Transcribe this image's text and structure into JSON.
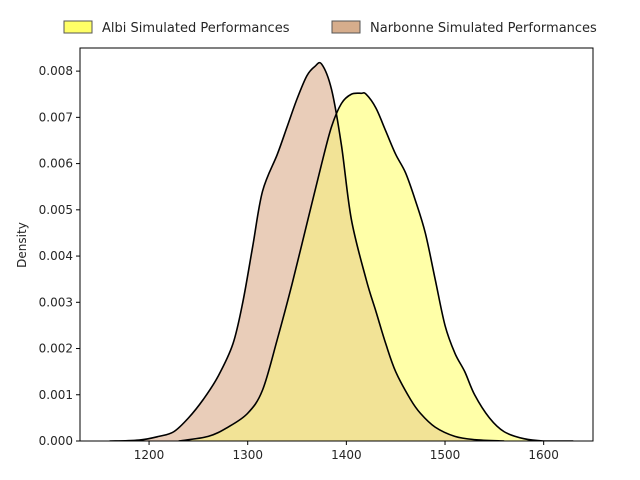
{
  "chart_data": {
    "type": "area",
    "title": "",
    "xlabel": "",
    "ylabel": "Density",
    "xlim": [
      1130,
      1650
    ],
    "ylim": [
      0,
      0.0085
    ],
    "xticks": [
      1200,
      1300,
      1400,
      1500,
      1600
    ],
    "yticks": [
      0.0,
      0.001,
      0.002,
      0.003,
      0.004,
      0.005,
      0.006,
      0.007,
      0.008
    ],
    "ytick_labels": [
      "0.000",
      "0.001",
      "0.002",
      "0.003",
      "0.004",
      "0.005",
      "0.006",
      "0.007",
      "0.008"
    ],
    "xtick_labels": [
      "1200",
      "1300",
      "1400",
      "1500",
      "1600"
    ],
    "legend_position": "top, above plot",
    "grid": false,
    "series": [
      {
        "name": "Albi Simulated Performances",
        "color": "#ffff99",
        "legend_color": "#ffff66",
        "x": [
          1230,
          1260,
          1280,
          1300,
          1315,
          1330,
          1345,
          1360,
          1375,
          1385,
          1395,
          1405,
          1415,
          1420,
          1430,
          1440,
          1450,
          1460,
          1470,
          1480,
          1490,
          1500,
          1510,
          1520,
          1530,
          1545,
          1560,
          1580,
          1600,
          1630
        ],
        "y": [
          0.0,
          0.0001,
          0.0003,
          0.0006,
          0.0011,
          0.0022,
          0.0034,
          0.0047,
          0.006,
          0.0068,
          0.0073,
          0.0075,
          0.00752,
          0.0075,
          0.0072,
          0.0067,
          0.0062,
          0.0058,
          0.0052,
          0.0045,
          0.0035,
          0.0025,
          0.0019,
          0.0015,
          0.001,
          0.0005,
          0.0002,
          5e-05,
          0.0,
          0.0
        ]
      },
      {
        "name": "Narbonne Simulated Performances",
        "color": "#e5c4ad",
        "legend_color": "#d6ad8c",
        "x": [
          1160,
          1190,
          1210,
          1225,
          1240,
          1255,
          1270,
          1285,
          1295,
          1305,
          1315,
          1330,
          1340,
          1350,
          1360,
          1368,
          1375,
          1385,
          1395,
          1405,
          1420,
          1430,
          1440,
          1450,
          1465,
          1475,
          1490,
          1510,
          1530,
          1560
        ],
        "y": [
          0.0,
          2e-05,
          0.0001,
          0.0002,
          0.0005,
          0.0009,
          0.0014,
          0.0021,
          0.003,
          0.0042,
          0.0054,
          0.0062,
          0.0068,
          0.0074,
          0.0079,
          0.0081,
          0.00815,
          0.0076,
          0.0064,
          0.0048,
          0.0035,
          0.0028,
          0.0021,
          0.0015,
          0.0009,
          0.0006,
          0.0003,
          0.0001,
          3e-05,
          0.0
        ]
      }
    ],
    "overlap_color": "#f2e396"
  }
}
